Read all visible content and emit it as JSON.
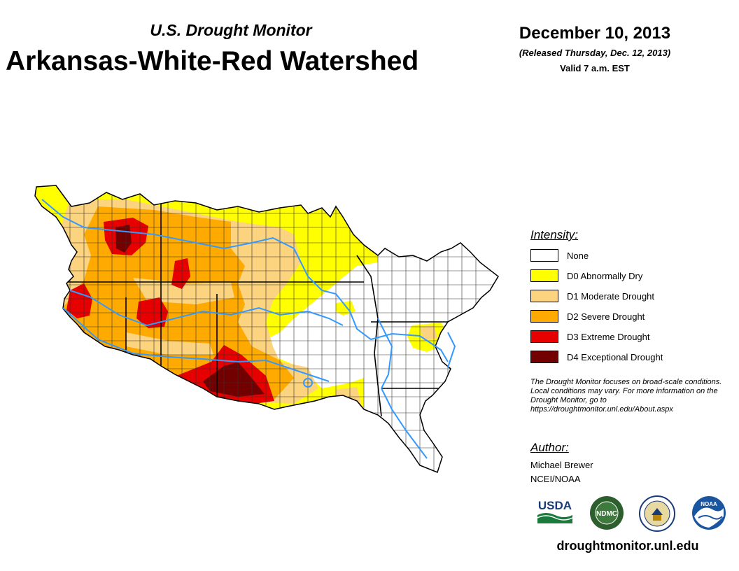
{
  "header": {
    "program": "U.S. Drought Monitor",
    "region": "Arkansas-White-Red Watershed",
    "date": "December 10, 2013",
    "released": "(Released Thursday, Dec. 12, 2013)",
    "valid": "Valid 7 a.m. EST"
  },
  "legend": {
    "title": "Intensity:",
    "items": [
      {
        "label": "None",
        "color": "#ffffff"
      },
      {
        "label": "D0 Abnormally Dry",
        "color": "#ffff00"
      },
      {
        "label": "D1 Moderate Drought",
        "color": "#fcd37f"
      },
      {
        "label": "D2 Severe Drought",
        "color": "#ffaa00"
      },
      {
        "label": "D3 Extreme Drought",
        "color": "#e60000"
      },
      {
        "label": "D4 Exceptional Drought",
        "color": "#730000"
      }
    ]
  },
  "disclaimer": "The Drought Monitor focuses on broad-scale conditions. Local conditions may vary. For more information on the Drought Monitor, go to https://droughtmonitor.unl.edu/About.aspx",
  "author": {
    "heading": "Author:",
    "name": "Michael Brewer",
    "org": "NCEI/NOAA"
  },
  "logos": {
    "usda": "USDA",
    "ndmc": "NDMC",
    "noaa": "NOAA"
  },
  "footer": {
    "website": "droughtmonitor.unl.edu"
  },
  "colors": {
    "river": "#3399ff",
    "county_border": "#333333",
    "state_border": "#000000"
  }
}
